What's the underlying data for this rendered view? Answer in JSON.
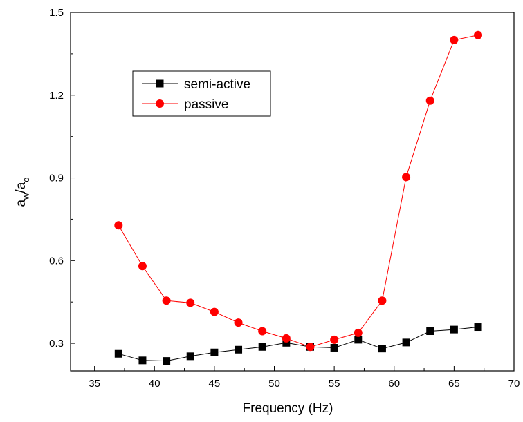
{
  "chart_data": {
    "type": "line",
    "title": "",
    "xlabel": "Frequency (Hz)",
    "ylabel": {
      "main": "a",
      "sub1": "w",
      "sep": "/a",
      "sub2": "o"
    },
    "xlim": [
      33,
      70
    ],
    "ylim": [
      0.2,
      1.5
    ],
    "xticks": [
      35,
      40,
      45,
      50,
      55,
      60,
      65,
      70
    ],
    "yticks": [
      0.3,
      0.6,
      0.9,
      1.2,
      1.5
    ],
    "xtick_labels": [
      "35",
      "40",
      "45",
      "50",
      "55",
      "60",
      "65",
      "70"
    ],
    "ytick_labels": [
      "0.3",
      "0.6",
      "0.9",
      "1.2",
      "1.5"
    ],
    "grid": false,
    "legend_position": "upper-left",
    "series": [
      {
        "name": "semi-active",
        "color": "#000000",
        "marker": "square",
        "x": [
          37,
          39,
          41,
          43,
          45,
          47,
          49,
          51,
          53,
          55,
          57,
          59,
          61,
          63,
          65,
          67
        ],
        "y": [
          0.262,
          0.238,
          0.236,
          0.253,
          0.267,
          0.277,
          0.287,
          0.302,
          0.287,
          0.284,
          0.313,
          0.281,
          0.303,
          0.344,
          0.35,
          0.359
        ]
      },
      {
        "name": "passive",
        "color": "#ff0000",
        "marker": "circle",
        "x": [
          37,
          39,
          41,
          43,
          45,
          47,
          49,
          51,
          53,
          55,
          57,
          59,
          61,
          63,
          65,
          67
        ],
        "y": [
          0.728,
          0.58,
          0.455,
          0.447,
          0.414,
          0.375,
          0.344,
          0.318,
          0.287,
          0.313,
          0.338,
          0.455,
          0.903,
          1.18,
          1.4,
          1.418
        ]
      }
    ]
  }
}
